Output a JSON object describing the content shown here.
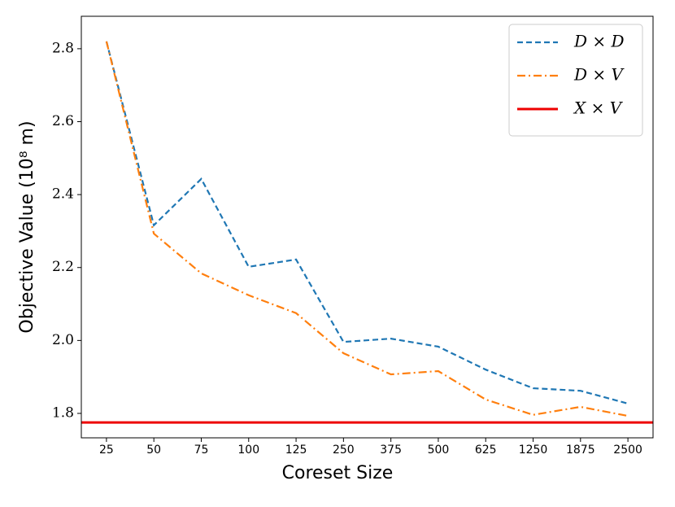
{
  "chart_data": {
    "type": "line",
    "xlabel": "Coreset Size",
    "ylabel": "Objective Value (10⁸ m)",
    "categories": [
      "25",
      "50",
      "75",
      "100",
      "125",
      "250",
      "375",
      "500",
      "625",
      "1250",
      "1875",
      "2500"
    ],
    "series": [
      {
        "name": "D × D",
        "color": "#1f77b4",
        "dash": "dashed",
        "values": [
          2.82,
          2.316,
          2.443,
          2.202,
          2.222,
          1.996,
          2.005,
          1.983,
          1.92,
          1.869,
          1.862,
          1.827
        ]
      },
      {
        "name": "D × V",
        "color": "#ff7f0e",
        "dash": "dashdot",
        "values": [
          2.82,
          2.293,
          2.184,
          2.124,
          2.075,
          1.965,
          1.907,
          1.916,
          1.838,
          1.796,
          1.818,
          1.793
        ]
      }
    ],
    "hlines": [
      {
        "name": "X × V",
        "color": "#ee0000",
        "value": 1.775
      }
    ],
    "ylim": [
      1.733,
      2.889
    ],
    "yticks": [
      1.8,
      2.0,
      2.2,
      2.4,
      2.6,
      2.8
    ],
    "legend": "upper right"
  }
}
